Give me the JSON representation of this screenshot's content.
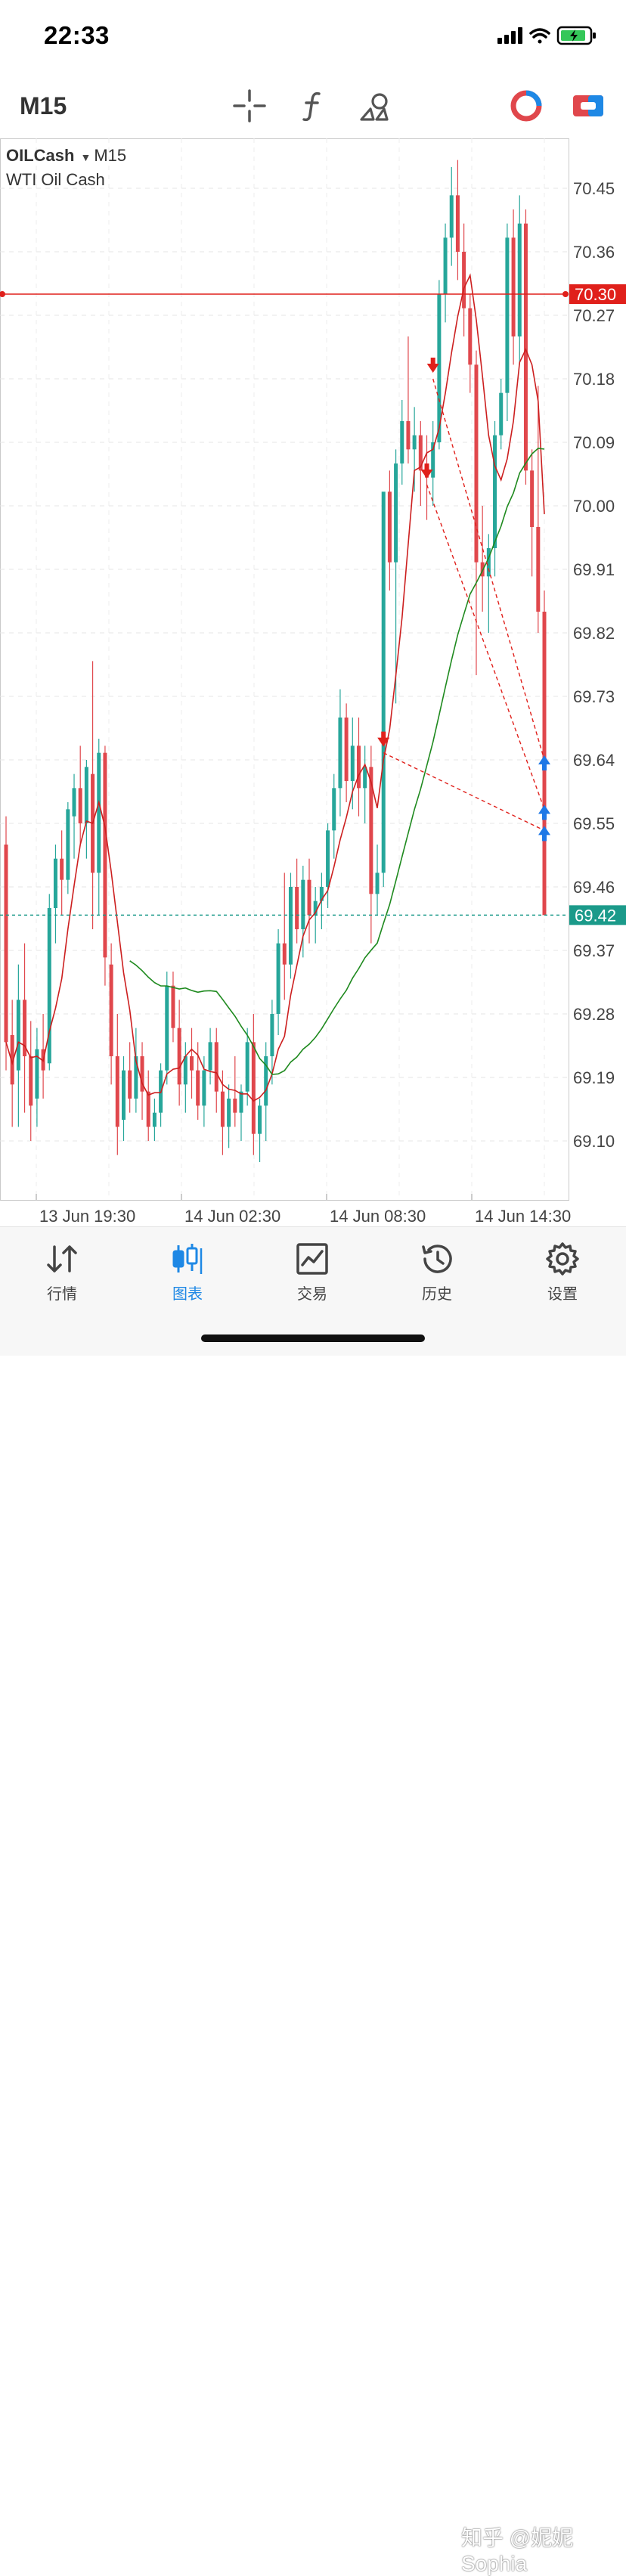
{
  "status_bar": {
    "time": "22:33"
  },
  "toolbar": {
    "timeframe": "M15",
    "icons": [
      "crosshair-icon",
      "function-icon",
      "objects-icon",
      "one-click-trading-icon",
      "trade-levels-icon"
    ]
  },
  "chart": {
    "symbol": "OILCash",
    "timeframe": "M15",
    "description": "WTI Oil Cash",
    "ask_line_label": "70.30",
    "bid_line_label": "69.42",
    "colors": {
      "up": "#26a69a",
      "down": "#e0474c",
      "ma_fast": "#cc1f1f",
      "ma_slow": "#1f8a1f",
      "ask": "#e0201b",
      "bid": "#1b9a8a"
    }
  },
  "chart_data": {
    "type": "candlestick",
    "y_ticks": [
      "70.45",
      "70.36",
      "70.27",
      "70.18",
      "70.09",
      "70.00",
      "69.91",
      "69.82",
      "69.73",
      "69.64",
      "69.55",
      "69.46",
      "69.37",
      "69.28",
      "69.19",
      "69.10"
    ],
    "x_ticks": [
      "13 Jun 19:30",
      "14 Jun 02:30",
      "14 Jun 08:30",
      "14 Jun 14:30"
    ],
    "ask_price": 70.3,
    "bid_price": 69.42,
    "grid": true
  },
  "bottom_nav": {
    "items": [
      {
        "label": "行情",
        "icon": "quotes-icon"
      },
      {
        "label": "图表",
        "icon": "chart-icon"
      },
      {
        "label": "交易",
        "icon": "trade-icon"
      },
      {
        "label": "历史",
        "icon": "history-icon"
      },
      {
        "label": "设置",
        "icon": "settings-icon"
      }
    ],
    "active": 1
  },
  "watermark": "知乎 @妮妮Sophia"
}
